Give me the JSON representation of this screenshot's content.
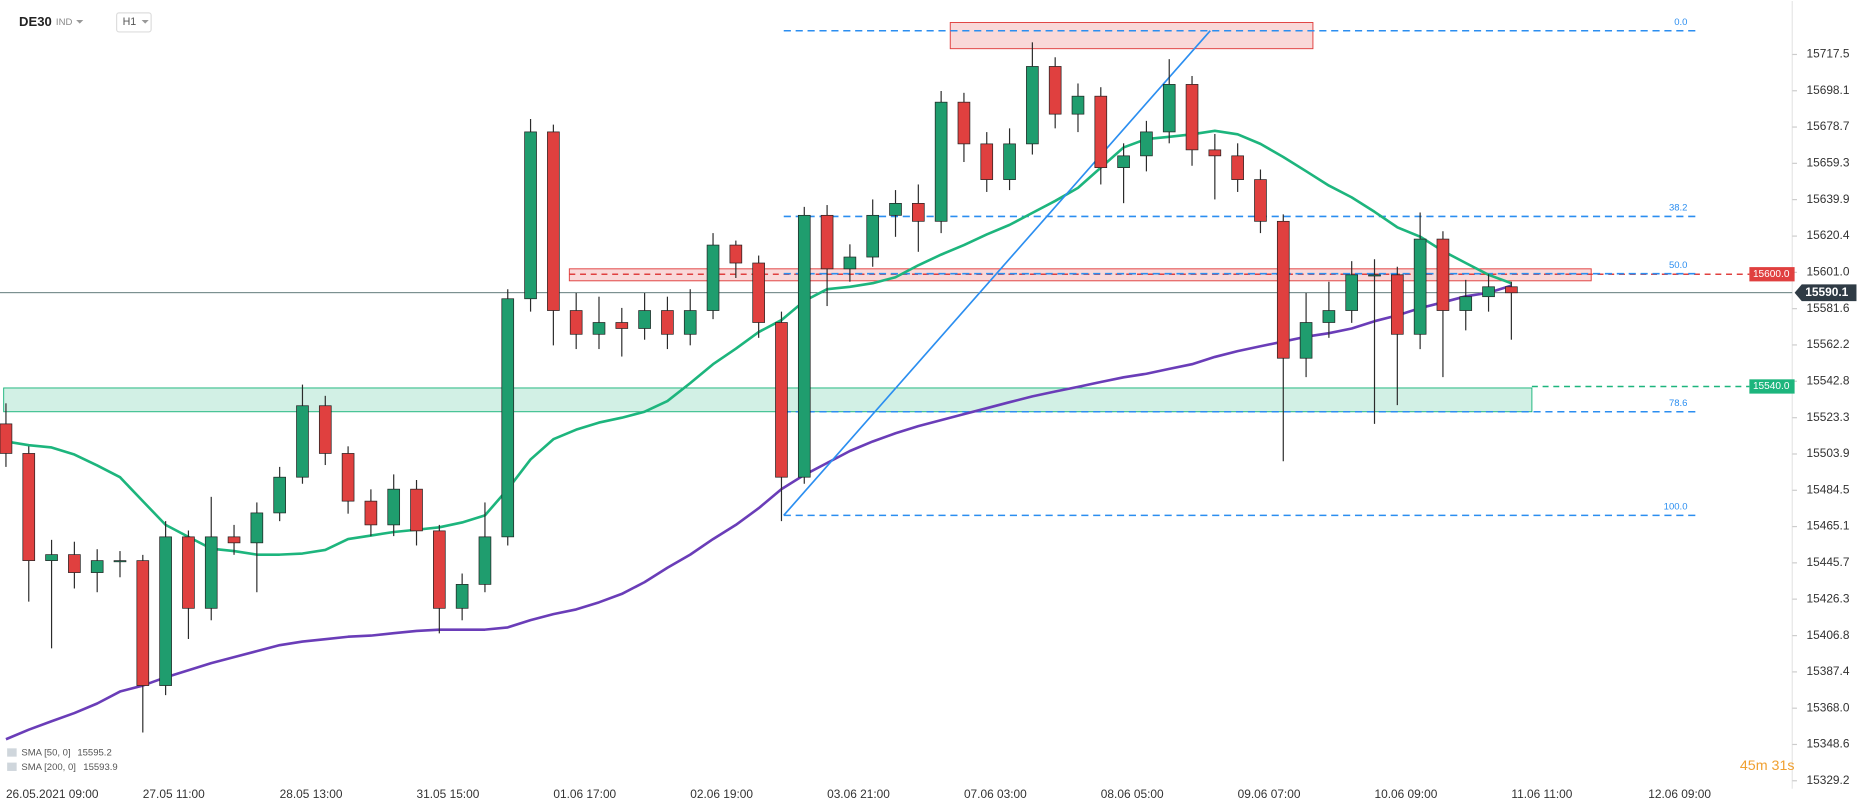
{
  "chart_data": {
    "type": "candlestick",
    "symbol": "DE30",
    "market": "IND",
    "timeframe": "H1",
    "categories": [
      "26.05.2021  09:00",
      null,
      null,
      null,
      null,
      null,
      "27.05  11:00",
      null,
      null,
      null,
      null,
      null,
      "28.05  13:00",
      null,
      null,
      null,
      null,
      null,
      "31.05  15:00",
      null,
      null,
      null,
      null,
      null,
      "01.06  17:00",
      null,
      null,
      null,
      null,
      null,
      "02.06  19:00",
      null,
      null,
      null,
      null,
      null,
      "03.06  21:00",
      null,
      null,
      null,
      null,
      null,
      "07.06  03:00",
      null,
      null,
      null,
      null,
      null,
      "08.06  05:00",
      null,
      null,
      null,
      null,
      null,
      "09.06  07:00",
      null,
      null,
      null,
      null,
      null,
      "10.06  09:00",
      null,
      null,
      null,
      null,
      null,
      "11.06  11:00",
      null,
      null,
      null,
      null,
      null,
      "12.06  09:00"
    ],
    "open": [
      15520.0,
      15504.2,
      15446.9,
      15450.1,
      15440.5,
      15446.9,
      15446.9,
      15380.1,
      15459.6,
      15421.4,
      15459.6,
      15456.4,
      15472.4,
      15491.5,
      15529.7,
      15504.2,
      15478.7,
      15466.0,
      15485.1,
      15462.8,
      15421.4,
      15434.2,
      15459.6,
      15586.9,
      15676.1,
      15580.6,
      15567.9,
      15574.2,
      15571.0,
      15580.6,
      15567.9,
      15580.6,
      15615.6,
      15606.0,
      15574.2,
      15491.5,
      15631.5,
      15602.9,
      15609.2,
      15631.5,
      15637.9,
      15628.3,
      15692.0,
      15669.7,
      15650.6,
      15669.7,
      15711.1,
      15685.6,
      15695.2,
      15657.0,
      15663.3,
      15676.1,
      15701.5,
      15666.5,
      15663.3,
      15650.6,
      15628.3,
      15555.1,
      15574.2,
      15580.6,
      15599.7,
      15599.7,
      15567.9,
      15618.8,
      15580.6,
      15588.0,
      15593.3,
      null,
      null,
      null,
      null,
      null,
      null
    ],
    "high": [
      15531,
      15508,
      15458,
      15457,
      15453,
      15452,
      15450,
      15468,
      15463,
      15481,
      15466,
      15478,
      15497,
      15541,
      15535,
      15508,
      15485,
      15493,
      15490,
      15466,
      15440,
      15478,
      15592,
      15683,
      15680,
      15590,
      15588,
      15582,
      15590,
      15588,
      15592,
      15622,
      15618,
      15610,
      15580,
      15636,
      15637,
      15616,
      15640,
      15645,
      15648,
      15698,
      15697,
      15676,
      15678,
      15724,
      15716,
      15702,
      15700,
      15670,
      15682,
      15715,
      15706,
      15675,
      15670,
      15656,
      15632,
      15590,
      15596,
      15607,
      15608,
      15604,
      15633,
      15623,
      15597,
      15600,
      15596,
      null,
      null,
      null,
      null,
      null,
      null
    ],
    "low": [
      15497,
      15425,
      15400,
      15432,
      15430,
      15438,
      15355,
      15375,
      15405,
      15415,
      15450,
      15430,
      15468,
      15488,
      15498,
      15472,
      15460,
      15460,
      15455,
      15408,
      15415,
      15430,
      15455,
      15580,
      15562,
      15560,
      15560,
      15556,
      15565,
      15560,
      15562,
      15576,
      15598,
      15566,
      15468,
      15488,
      15583,
      15596,
      15604,
      15620,
      15612,
      15622,
      15660,
      15644,
      15645,
      15664,
      15678,
      15676,
      15648,
      15638,
      15655,
      15670,
      15658,
      15640,
      15644,
      15622,
      15500,
      15545,
      15566,
      15574,
      15520,
      15530,
      15560,
      15545,
      15570,
      15580,
      15565,
      null,
      null,
      null,
      null,
      null,
      null
    ],
    "close": [
      15504.2,
      15446.9,
      15450.1,
      15440.5,
      15446.9,
      15446.9,
      15380.1,
      15459.6,
      15421.4,
      15459.6,
      15456.4,
      15472.4,
      15491.5,
      15529.7,
      15504.2,
      15478.7,
      15466.0,
      15485.1,
      15462.8,
      15421.4,
      15434.2,
      15459.6,
      15586.9,
      15676.1,
      15580.6,
      15567.9,
      15574.2,
      15571.0,
      15580.6,
      15567.9,
      15580.6,
      15615.6,
      15606.0,
      15574.2,
      15491.5,
      15631.5,
      15602.9,
      15609.2,
      15631.5,
      15637.9,
      15628.3,
      15692.0,
      15669.7,
      15650.6,
      15669.7,
      15711.1,
      15685.6,
      15695.2,
      15657.0,
      15663.3,
      15676.1,
      15701.5,
      15666.5,
      15663.3,
      15650.6,
      15628.3,
      15555.1,
      15574.2,
      15580.6,
      15599.7,
      15599.7,
      15567.9,
      15618.8,
      15580.6,
      15588.0,
      15593.3,
      15590.1,
      null,
      null,
      null,
      null,
      null,
      null
    ],
    "up_color": "#1f9d6e",
    "down_color": "#e0403f",
    "wick_color": "#2b2b2b",
    "series": [
      {
        "name": "SMA [50, 0]",
        "color": "#1db57d",
        "values": [
          15510.6,
          15508.6,
          15507.4,
          15503.6,
          15497.8,
          15491.5,
          15478.7,
          15466.0,
          15459.6,
          15453.3,
          15452.0,
          15450.1,
          15450.1,
          15450.7,
          15452.6,
          15458.4,
          15460.3,
          15462.2,
          15463.4,
          15464.7,
          15467.3,
          15471.1,
          15485.1,
          15501.0,
          15511.8,
          15516.9,
          15520.7,
          15523.3,
          15526.5,
          15532.2,
          15541.8,
          15551.9,
          15560.2,
          15569.1,
          15575.5,
          15585.7,
          15592.0,
          15593.3,
          15595.2,
          15598.4,
          15604.8,
          15610.5,
          15615.6,
          15621.3,
          15626.4,
          15632.8,
          15639.2,
          15646.2,
          15657.0,
          15667.8,
          15672.3,
          15673.5,
          15674.8,
          15676.7,
          15674.8,
          15669.7,
          15662.7,
          15655.1,
          15647.4,
          15641.1,
          15633.4,
          15625.1,
          15620.1,
          15612.4,
          15606.0,
          15599.7,
          15595.2,
          null,
          null,
          null,
          null,
          null,
          null
        ]
      },
      {
        "name": "SMA [200, 0]",
        "color": "#6a3db8",
        "values": [
          15351.4,
          15356.5,
          15361.0,
          15365.4,
          15370.5,
          15376.9,
          15380.1,
          15384.5,
          15388.3,
          15392.1,
          15395.3,
          15398.5,
          15401.7,
          15403.6,
          15404.9,
          15406.2,
          15406.8,
          15408.1,
          15409.3,
          15410.0,
          15410.0,
          15410.0,
          15411.2,
          15415.1,
          15418.3,
          15420.8,
          15424.6,
          15429.1,
          15435.4,
          15443.1,
          15450.1,
          15458.4,
          15466.0,
          15474.9,
          15485.1,
          15492.7,
          15499.1,
          15505.5,
          15510.6,
          15515.0,
          15518.8,
          15522.0,
          15525.2,
          15528.4,
          15531.6,
          15534.7,
          15537.3,
          15539.8,
          15542.4,
          15544.9,
          15546.8,
          15549.4,
          15551.9,
          15555.8,
          15558.9,
          15561.5,
          15564.0,
          15566.6,
          15568.5,
          15571.0,
          15574.9,
          15578.0,
          15581.9,
          15585.0,
          15588.2,
          15590.1,
          15593.9,
          null,
          null,
          null,
          null,
          null,
          null
        ]
      }
    ],
    "ylim": [
      15323.0,
      15746.1
    ],
    "yticks": [
      15717.5,
      15698.1,
      15678.7,
      15659.3,
      15639.9,
      15620.4,
      {
        "value": 15601.0,
        "label": "15601.0"
      },
      15581.6,
      15562.2,
      15542.8,
      15523.3,
      15503.9,
      15484.5,
      15465.1,
      15445.7,
      15426.3,
      15406.8,
      15387.4,
      {
        "value": 15368.0,
        "label": "15368.0"
      },
      15348.6,
      15329.2
    ],
    "fibonacci": {
      "color": "#2b8ef0",
      "start": 34.1,
      "end": 74.1,
      "levels": [
        {
          "label": "0.0",
          "price": 15730.2
        },
        {
          "label": "38.2",
          "price": 15630.9
        },
        {
          "label": "50.0",
          "price": 15600.3
        },
        {
          "label": "78.6",
          "price": 15526.5
        },
        {
          "label": "100.0",
          "price": 15471.1
        }
      ]
    },
    "trendline": {
      "color": "#2b8ef0",
      "x": [
        34.1,
        52.8
      ],
      "y": [
        15471.1,
        15730.2
      ]
    },
    "zones": [
      {
        "start": 41.4,
        "end": 57.3,
        "top": 15734.6,
        "bottom": 15720.6,
        "color": "#e0403f"
      },
      {
        "start": 24.7,
        "end": 69.5,
        "top": 15602.9,
        "bottom": 15596.5,
        "color": "#e0403f"
      },
      {
        "start": -0.1,
        "end": 66.9,
        "top": 15539.2,
        "bottom": 15526.5,
        "color": "#1db57d"
      }
    ],
    "levels": [
      {
        "label": "15600.0",
        "value": 15600.0,
        "color": "#e0403f"
      },
      {
        "label": "15540.0",
        "value": 15540.0,
        "color": "#1db57d"
      }
    ],
    "last_price": {
      "label": "15590.1",
      "value": 15590.1
    },
    "countdown": "45m 31s"
  }
}
